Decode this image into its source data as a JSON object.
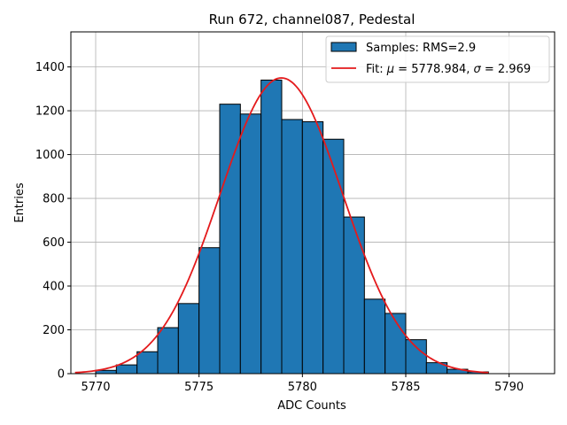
{
  "chart_data": {
    "type": "bar",
    "title": "Run 672, channel087, Pedestal",
    "xlabel": "ADC Counts",
    "ylabel": "Entries",
    "xlim": [
      5768.8,
      5792.2
    ],
    "ylim": [
      0,
      1560
    ],
    "xticks": [
      5770,
      5775,
      5780,
      5785,
      5790
    ],
    "yticks": [
      0,
      200,
      400,
      600,
      800,
      1000,
      1200,
      1400
    ],
    "grid": true,
    "bar_color": "#1f77b4",
    "fit_color": "#e41a1c",
    "histogram": {
      "name": "Samples: RMS=2.9",
      "bin_edges": [
        5770,
        5771,
        5772,
        5773,
        5774,
        5775,
        5776,
        5777,
        5778,
        5779,
        5780,
        5781,
        5782,
        5783,
        5784,
        5785,
        5786,
        5787,
        5788,
        5789
      ],
      "counts": [
        15,
        40,
        100,
        210,
        320,
        575,
        1230,
        1185,
        1340,
        1160,
        1150,
        1070,
        715,
        340,
        275,
        155,
        50,
        20,
        8
      ]
    },
    "fit": {
      "name_prefix": "Fit: ",
      "mu_symbol": "μ",
      "sigma_symbol": "σ",
      "mu": 5778.984,
      "sigma": 2.969,
      "amplitude": 1350,
      "x_range": [
        5769,
        5789
      ],
      "mu_text": " = 5778.984, ",
      "sigma_text": " = 2.969"
    },
    "legend_position": "top-right"
  }
}
